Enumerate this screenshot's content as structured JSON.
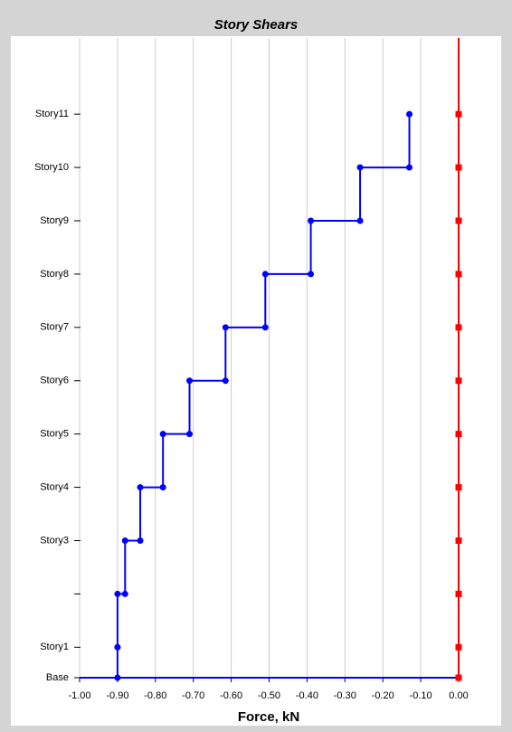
{
  "chart_data": {
    "type": "step",
    "title": "Story Shears",
    "x_label": "Force, kN",
    "levels": [
      "Base",
      "Story1",
      null,
      "Story3",
      "Story4",
      "Story5",
      "Story6",
      "Story7",
      "Story8",
      "Story9",
      "Story10",
      "Story11"
    ],
    "elevations": [
      0,
      2,
      5.5,
      9,
      12.5,
      16,
      19.5,
      23,
      26.5,
      30,
      33.5,
      37
    ],
    "series": [
      {
        "color": "#0000ff",
        "values": [
          -0.9,
          -0.9,
          -0.88,
          -0.84,
          -0.78,
          -0.71,
          -0.615,
          -0.51,
          -0.39,
          -0.26,
          -0.13
        ]
      },
      {
        "color": "#ff0000",
        "values": [
          0,
          0,
          0,
          0,
          0,
          0,
          0,
          0,
          0,
          0,
          0,
          0
        ]
      }
    ],
    "xlim": [
      -1,
      0
    ],
    "xticks": [
      {
        "value": -1,
        "label": "-1.00"
      },
      {
        "value": -0.9,
        "label": "-0.90"
      },
      {
        "value": -0.8,
        "label": "-0.80"
      },
      {
        "value": -0.7,
        "label": "-0.70"
      },
      {
        "value": -0.6,
        "label": "-0.60"
      },
      {
        "value": -0.5,
        "label": "-0.50"
      },
      {
        "value": -0.4,
        "label": "-0.40"
      },
      {
        "value": -0.3,
        "label": "-0.30"
      },
      {
        "value": -0.2,
        "label": "-0.20"
      },
      {
        "value": -0.1,
        "label": "-0.10"
      },
      {
        "value": 0,
        "label": "0.00"
      }
    ],
    "ylim": [
      0,
      42
    ],
    "grid": true
  }
}
